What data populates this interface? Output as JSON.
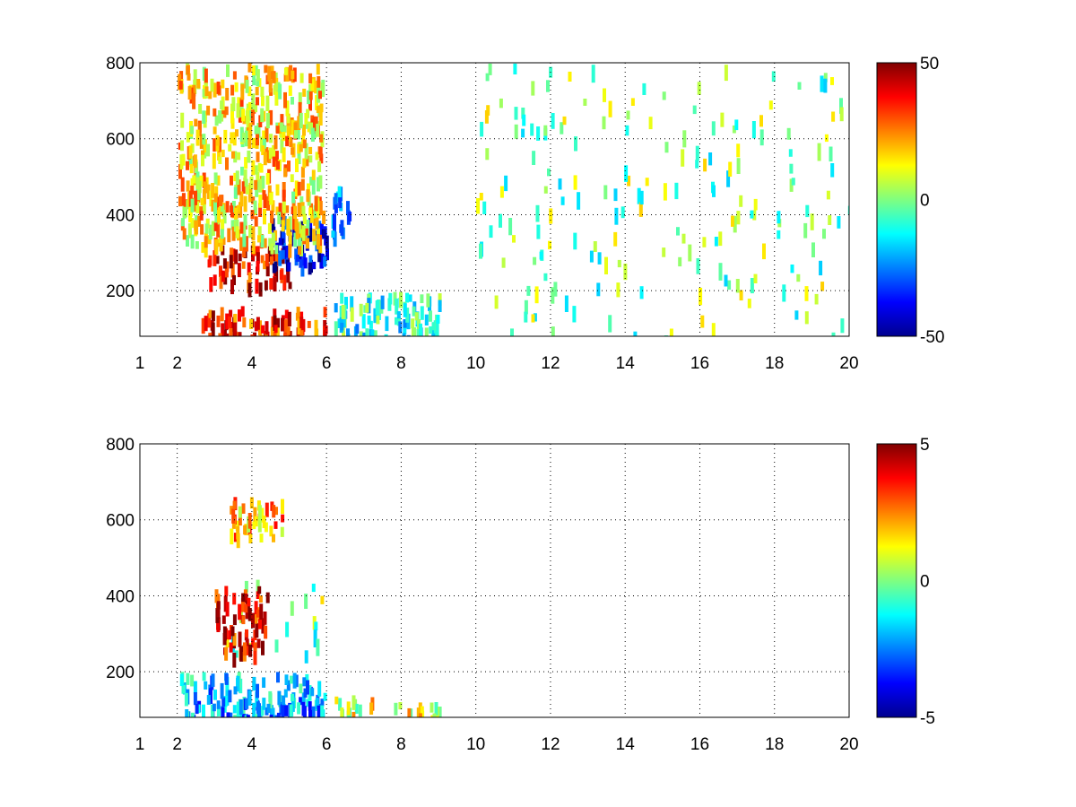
{
  "chart_data": [
    {
      "type": "heatmap",
      "title": "",
      "xlabel": "",
      "ylabel": "",
      "colormap": "jet",
      "xlim": [
        1,
        20
      ],
      "ylim": [
        80,
        800
      ],
      "xticks": [
        1,
        2,
        4,
        6,
        8,
        10,
        12,
        14,
        16,
        18,
        20
      ],
      "yticks": [
        200,
        400,
        600,
        800
      ],
      "clim": [
        -50,
        50
      ],
      "colorbar_ticks": [
        50,
        0,
        -50
      ],
      "grid": true,
      "features": [
        {
          "x": [
            2.5,
            6.0
          ],
          "y": [
            80,
            160
          ],
          "value": 35,
          "description": "strong positive band near bottom"
        },
        {
          "x": [
            2.8,
            5.0
          ],
          "y": [
            220,
            320
          ],
          "value": 40,
          "description": "rising positive ridge"
        },
        {
          "x": [
            4.5,
            6.0
          ],
          "y": [
            260,
            400
          ],
          "value": -40,
          "description": "negative ridge beside positive ridge"
        },
        {
          "x": [
            2.0,
            5.9
          ],
          "y": [
            320,
            800
          ],
          "value": 15,
          "description": "scattered positive values"
        },
        {
          "x": [
            6.1,
            6.6
          ],
          "y": [
            350,
            480
          ],
          "value": -20,
          "description": "negative patch"
        },
        {
          "x": [
            6.2,
            9.0
          ],
          "y": [
            80,
            200
          ],
          "value": -10,
          "description": "mixed low-level patches"
        },
        {
          "x": [
            10.0,
            20.0
          ],
          "y": [
            80,
            800
          ],
          "value": 0,
          "description": "sparse near-zero speckle"
        }
      ]
    },
    {
      "type": "heatmap",
      "title": "",
      "xlabel": "",
      "ylabel": "",
      "colormap": "jet",
      "xlim": [
        1,
        20
      ],
      "ylim": [
        80,
        800
      ],
      "xticks": [
        1,
        2,
        4,
        6,
        8,
        10,
        12,
        14,
        16,
        18,
        20
      ],
      "yticks": [
        200,
        400,
        600,
        800
      ],
      "clim": [
        -5,
        5
      ],
      "colorbar_ticks": [
        5,
        0,
        -5
      ],
      "grid": true,
      "features": [
        {
          "x": [
            2.0,
            6.0
          ],
          "y": [
            80,
            200
          ],
          "value": -2,
          "description": "mixed negative band near bottom"
        },
        {
          "x": [
            3.2,
            6.0
          ],
          "y": [
            220,
            450
          ],
          "value": 0,
          "description": "near-zero region"
        },
        {
          "x": [
            3.0,
            4.4
          ],
          "y": [
            250,
            430
          ],
          "value": 4,
          "description": "scattered strong positive"
        },
        {
          "x": [
            3.4,
            4.8
          ],
          "y": [
            560,
            660
          ],
          "value": 2,
          "description": "small positive patches"
        },
        {
          "x": [
            6.2,
            7.2
          ],
          "y": [
            90,
            140
          ],
          "value": 1,
          "description": "small mixed patches"
        },
        {
          "x": [
            7.8,
            9.0
          ],
          "y": [
            85,
            130
          ],
          "value": 1,
          "description": "small mixed patches"
        }
      ]
    }
  ]
}
